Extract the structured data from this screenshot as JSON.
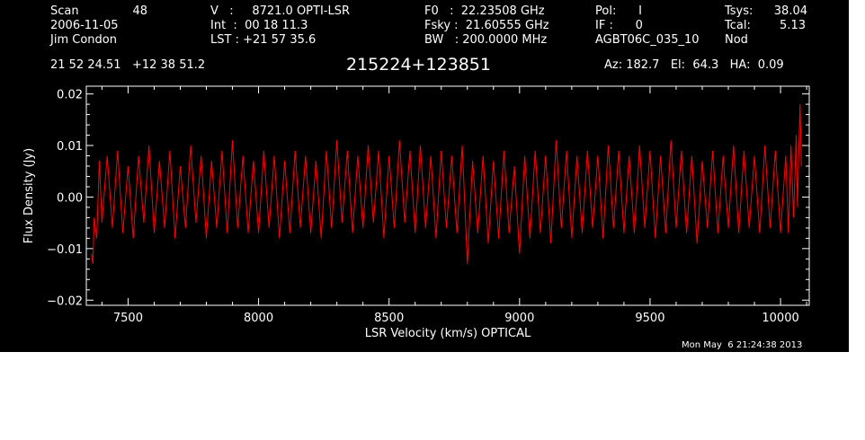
{
  "header": {
    "col1": {
      "scan_label": "Scan",
      "scan_value": "48",
      "date": "2006-11-05",
      "observer": "Jim Condon"
    },
    "col2": {
      "v_line": "V   :     8721.0 OPTI-LSR",
      "int_line": "Int  :  00 18 11.3",
      "lst_line": "LST : +21 57 35.6"
    },
    "col3": {
      "f0_line": "F0   :  22.23508 GHz",
      "fsky_line": "Fsky :  21.60555 GHz",
      "bw_line": "BW   : 200.0000 MHz"
    },
    "col4": {
      "pol_line": "Pol:      I",
      "if_line": "IF :      0",
      "proj_line": "AGBT06C_035_10"
    },
    "col5": {
      "tsys_label": "Tsys:",
      "tsys_value": "38.04",
      "tcal_label": "Tcal:",
      "tcal_value": "5.13",
      "mode": "Nod"
    },
    "coords": "21 52 24.51   +12 38 51.2",
    "source": "215224+123851",
    "pointing": "Az: 182.7   El:  64.3   HA:  0.09"
  },
  "footer": {
    "timestamp": "Mon May  6 21:24:38 2013"
  },
  "chart_data": {
    "type": "line",
    "title": "215224+123851",
    "xlabel": "LSR Velocity (km/s) OPTICAL",
    "ylabel": "Flux Density (Jy)",
    "xlim": [
      7340,
      10110
    ],
    "ylim": [
      -0.021,
      0.0215
    ],
    "xticks": [
      7500,
      8000,
      8500,
      9000,
      9500,
      10000
    ],
    "xtick_labels": [
      "7500",
      "8000",
      "8500",
      "9000",
      "9500",
      "10000"
    ],
    "yticks": [
      -0.02,
      -0.01,
      0.0,
      0.01,
      0.02
    ],
    "ytick_labels": [
      "−0.02",
      "−0.01",
      "0.00",
      "0.01",
      "0.02"
    ],
    "grid": false,
    "line_color": "#ff0000",
    "axis_color": "#ffffff",
    "background": "#000000",
    "series": [
      {
        "x": [
          7360,
          7365,
          7370,
          7380,
          7390,
          7400,
          7420,
          7440,
          7460,
          7480,
          7500,
          7520,
          7540,
          7560,
          7580,
          7600,
          7620,
          7640,
          7660,
          7680,
          7700,
          7720,
          7740,
          7760,
          7780,
          7800,
          7820,
          7840,
          7860,
          7880,
          7900,
          7920,
          7940,
          7960,
          7980,
          8000,
          8020,
          8040,
          8060,
          8080,
          8100,
          8120,
          8140,
          8160,
          8180,
          8200,
          8220,
          8240,
          8260,
          8280,
          8300,
          8320,
          8340,
          8360,
          8380,
          8400,
          8420,
          8440,
          8460,
          8480,
          8500,
          8520,
          8540,
          8560,
          8580,
          8600,
          8620,
          8640,
          8660,
          8680,
          8700,
          8720,
          8740,
          8760,
          8780,
          8800,
          8820,
          8840,
          8860,
          8880,
          8900,
          8920,
          8940,
          8960,
          8980,
          9000,
          9020,
          9040,
          9060,
          9080,
          9100,
          9120,
          9140,
          9160,
          9180,
          9200,
          9220,
          9240,
          9260,
          9280,
          9300,
          9320,
          9340,
          9360,
          9380,
          9400,
          9420,
          9440,
          9460,
          9480,
          9500,
          9520,
          9540,
          9560,
          9580,
          9600,
          9620,
          9640,
          9660,
          9680,
          9700,
          9720,
          9740,
          9760,
          9780,
          9800,
          9820,
          9840,
          9860,
          9880,
          9900,
          9920,
          9940,
          9960,
          9980,
          10000,
          10020,
          10030,
          10040,
          10050,
          10060,
          10065,
          10070,
          10075,
          10080
        ],
        "y": [
          -0.011,
          -0.013,
          -0.004,
          -0.008,
          0.007,
          -0.005,
          0.008,
          -0.006,
          0.009,
          -0.007,
          0.006,
          -0.008,
          0.008,
          -0.005,
          0.01,
          -0.007,
          0.007,
          -0.006,
          0.009,
          -0.008,
          0.006,
          -0.006,
          0.01,
          -0.005,
          0.008,
          -0.008,
          0.007,
          -0.006,
          0.009,
          -0.007,
          0.011,
          -0.006,
          0.008,
          -0.007,
          0.007,
          -0.007,
          0.009,
          -0.006,
          0.008,
          -0.008,
          0.007,
          -0.007,
          0.009,
          -0.006,
          0.008,
          -0.007,
          0.007,
          -0.008,
          0.009,
          -0.006,
          0.011,
          -0.005,
          0.009,
          -0.007,
          0.008,
          -0.006,
          0.01,
          -0.005,
          0.009,
          -0.008,
          0.008,
          -0.006,
          0.011,
          -0.005,
          0.009,
          -0.007,
          0.01,
          -0.006,
          0.008,
          -0.008,
          0.009,
          -0.006,
          0.008,
          -0.007,
          0.01,
          -0.013,
          0.007,
          -0.007,
          0.008,
          -0.009,
          0.007,
          -0.008,
          0.009,
          -0.007,
          0.006,
          -0.011,
          0.008,
          -0.008,
          0.009,
          -0.007,
          0.008,
          -0.009,
          0.011,
          -0.006,
          0.009,
          -0.008,
          0.008,
          -0.007,
          0.009,
          -0.006,
          0.008,
          -0.008,
          0.01,
          -0.006,
          0.009,
          -0.007,
          0.008,
          -0.007,
          0.01,
          -0.006,
          0.009,
          -0.008,
          0.008,
          -0.007,
          0.011,
          -0.006,
          0.009,
          -0.007,
          0.008,
          -0.009,
          0.007,
          -0.006,
          0.009,
          -0.007,
          0.008,
          -0.006,
          0.01,
          -0.007,
          0.009,
          -0.006,
          0.008,
          -0.007,
          0.01,
          -0.006,
          0.009,
          -0.007,
          0.008,
          -0.007,
          0.01,
          -0.004,
          0.012,
          -0.002,
          0.009,
          0.018,
          0.006
        ]
      }
    ]
  }
}
